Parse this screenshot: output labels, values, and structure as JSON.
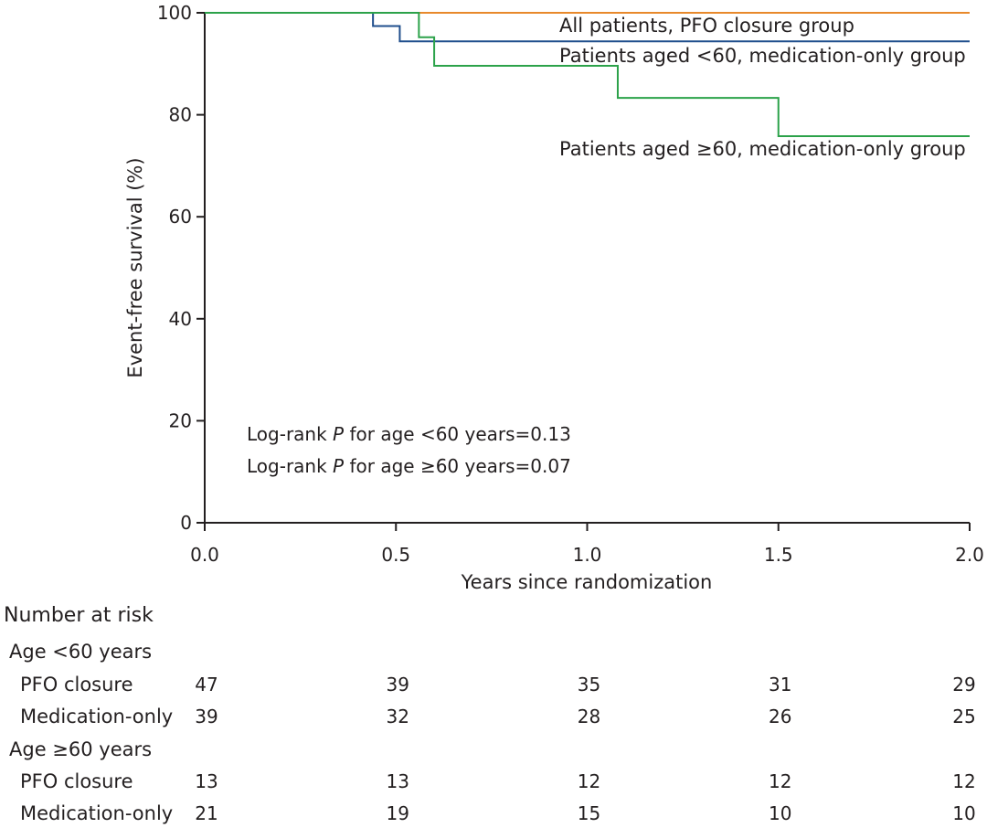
{
  "chart_data": {
    "type": "line",
    "subtype": "kaplan-meier-step",
    "xlabel": "Years since randomization",
    "ylabel": "Event-free survival (%)",
    "xlim": [
      0,
      2
    ],
    "ylim": [
      0,
      100
    ],
    "x_ticks": [
      0,
      0.5,
      1,
      1.5,
      2
    ],
    "x_tick_labels": [
      "0.0",
      "0.5",
      "1.0",
      "1.5",
      "2.0"
    ],
    "y_ticks": [
      0,
      20,
      40,
      60,
      80,
      100
    ],
    "y_tick_labels": [
      "0",
      "20",
      "40",
      "60",
      "80",
      "100"
    ],
    "series": [
      {
        "name": "All patients, PFO closure group",
        "color": "#e8892b",
        "x": [
          0,
          2
        ],
        "y": [
          100,
          100
        ]
      },
      {
        "name": "Patients aged <60, medication-only group",
        "color": "#1f4e8c",
        "x": [
          0,
          0.44,
          0.51,
          2
        ],
        "y": [
          100,
          97.4,
          94.4,
          94.4
        ]
      },
      {
        "name": "Patients aged ≥60, medication-only group",
        "color": "#2ca24a",
        "x": [
          0,
          0.56,
          0.6,
          1.08,
          1.5,
          2
        ],
        "y": [
          100,
          95.2,
          89.6,
          83.3,
          75.8,
          75.8
        ]
      }
    ],
    "annotations": [
      {
        "label": "Log-rank ",
        "italic": "P",
        "rest": " for age <60 years=0.13"
      },
      {
        "label": "Log-rank ",
        "italic": "P",
        "rest": " for age ≥60 years=0.07"
      }
    ],
    "risk_table": {
      "title": "Number at risk",
      "groups": [
        {
          "label": "Age <60 years",
          "rows": [
            {
              "label": "PFO closure",
              "values": [
                "47",
                "39",
                "35",
                "31",
                "29"
              ]
            },
            {
              "label": "Medication-only",
              "values": [
                "39",
                "32",
                "28",
                "26",
                "25"
              ]
            }
          ]
        },
        {
          "label": "Age ≥60 years",
          "rows": [
            {
              "label": "PFO closure",
              "values": [
                "13",
                "13",
                "12",
                "12",
                "12"
              ]
            },
            {
              "label": "Medication-only",
              "values": [
                "21",
                "19",
                "15",
                "10",
                "10"
              ]
            }
          ]
        }
      ]
    }
  }
}
